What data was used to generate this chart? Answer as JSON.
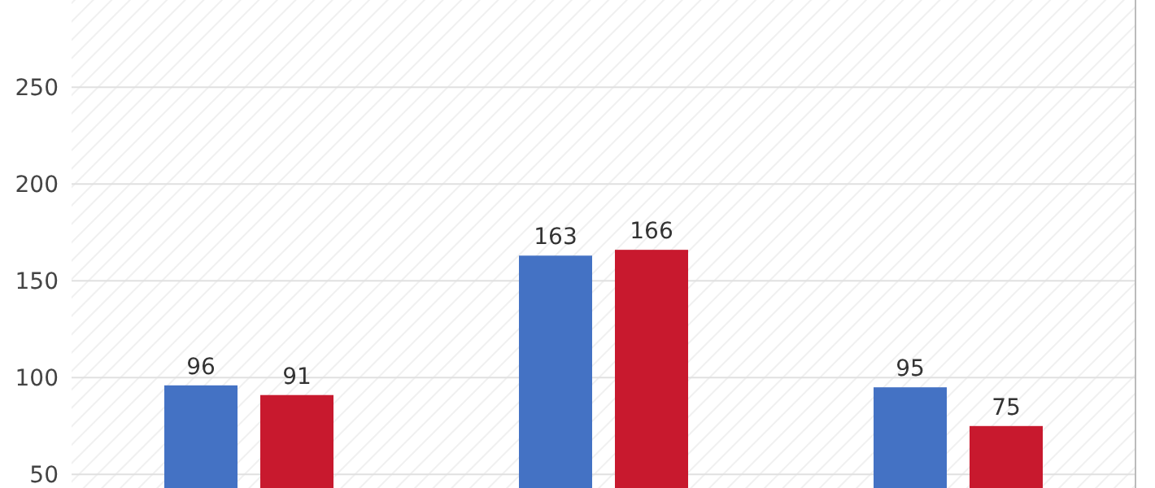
{
  "chart_data": {
    "type": "bar",
    "categories": [
      null,
      null,
      null
    ],
    "series": [
      {
        "color": "#4472c4",
        "values": [
          96,
          163,
          95
        ]
      },
      {
        "color": "#c8192e",
        "values": [
          91,
          166,
          75
        ]
      }
    ],
    "ylim": [
      43,
      295
    ],
    "yticks": [
      50,
      100,
      150,
      200,
      250
    ],
    "grid": "y",
    "data_labels": true
  }
}
